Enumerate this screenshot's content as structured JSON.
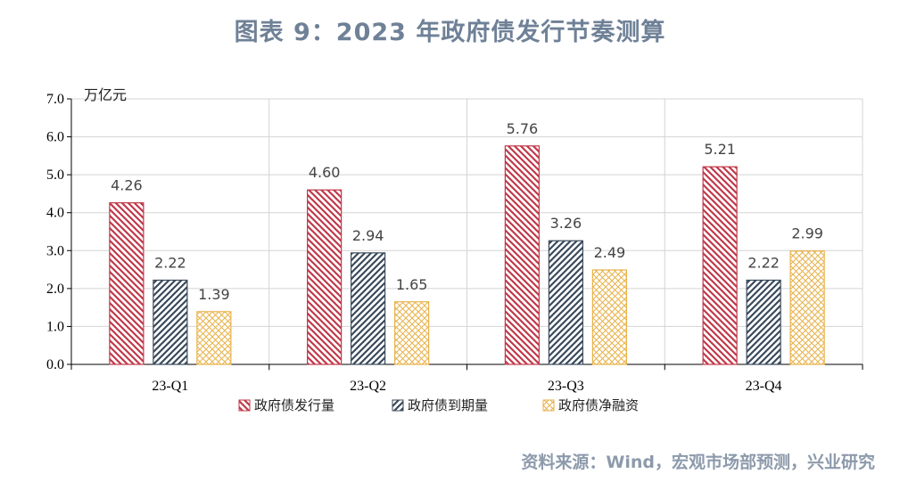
{
  "title": "图表 9：2023 年政府债发行节奏测算",
  "source": "资料来源：Wind，宏观市场部预测，兴业研究",
  "chart_data": {
    "type": "bar",
    "unit_label": "万亿元",
    "categories": [
      "23-Q1",
      "23-Q2",
      "23-Q3",
      "23-Q4"
    ],
    "ylim": [
      0,
      7
    ],
    "yticks": [
      "0.0",
      "1.0",
      "2.0",
      "3.0",
      "4.0",
      "5.0",
      "6.0",
      "7.0"
    ],
    "grid": true,
    "legend_position": "bottom",
    "series": [
      {
        "name": "政府债发行量",
        "values": [
          4.26,
          4.6,
          5.76,
          5.21
        ],
        "labels": [
          "4.26",
          "4.60",
          "5.76",
          "5.21"
        ],
        "color": "#c0394a",
        "pattern": "diagonal-down"
      },
      {
        "name": "政府债到期量",
        "values": [
          2.22,
          2.94,
          3.26,
          2.22
        ],
        "labels": [
          "2.22",
          "2.94",
          "3.26",
          "2.22"
        ],
        "color": "#3a4a5c",
        "pattern": "diagonal-up"
      },
      {
        "name": "政府债净融资",
        "values": [
          1.39,
          1.65,
          2.49,
          2.99
        ],
        "labels": [
          "1.39",
          "1.65",
          "2.49",
          "2.99"
        ],
        "color": "#e8b24a",
        "pattern": "crosshatch"
      }
    ]
  }
}
